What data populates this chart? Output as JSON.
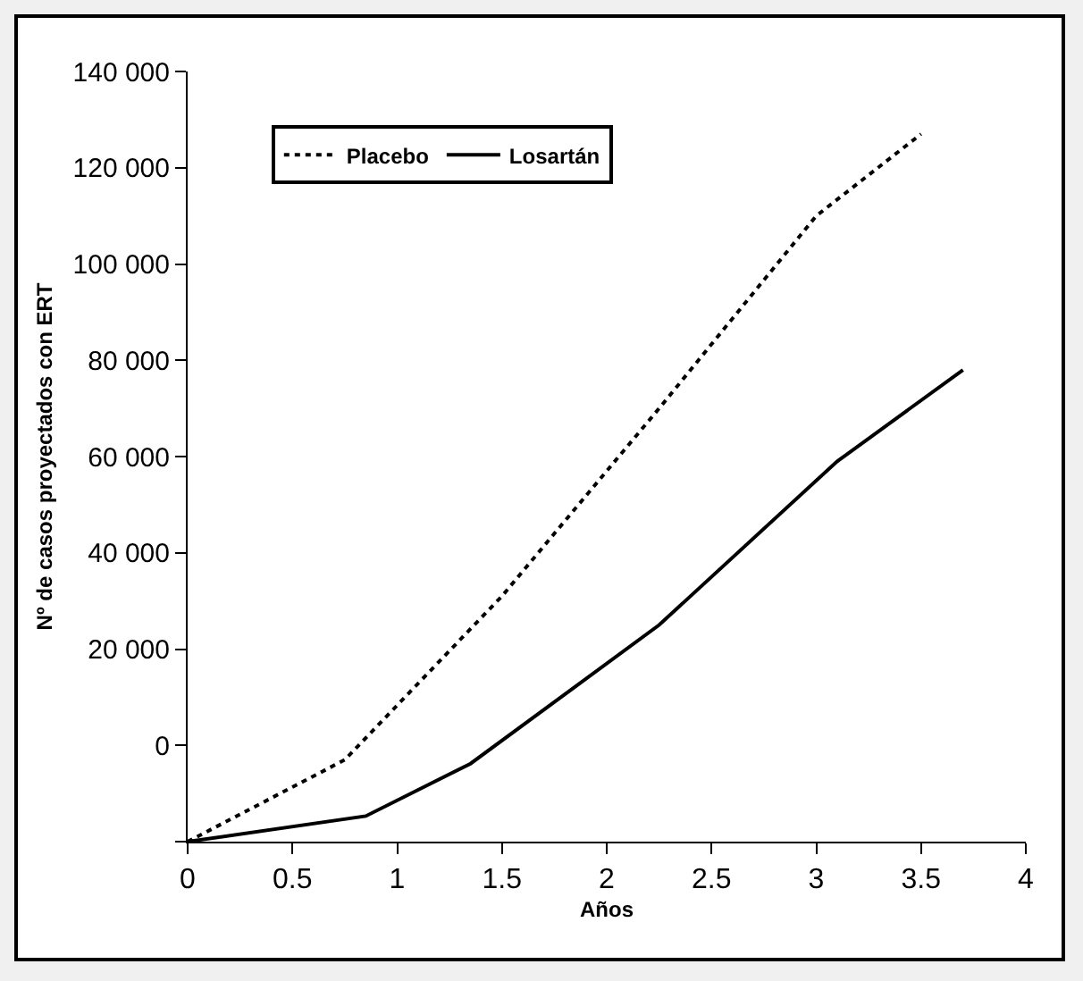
{
  "chart_data": {
    "type": "line",
    "xlabel": "Años",
    "ylabel": "Nº de casos proyectados con ERT",
    "xlim": [
      0,
      4
    ],
    "xticks": [
      0,
      0.5,
      1,
      1.5,
      2,
      2.5,
      3,
      3.5,
      4
    ],
    "ylim": [
      -20000,
      140000
    ],
    "yticks": [
      {
        "value": -20000,
        "label": null
      },
      {
        "value": 0,
        "label": "0"
      },
      {
        "value": 20000,
        "label": "20 000"
      },
      {
        "value": 40000,
        "label": "40 000"
      },
      {
        "value": 60000,
        "label": "60 000"
      },
      {
        "value": 80000,
        "label": "80 000"
      },
      {
        "value": 100000,
        "label": "100 000"
      },
      {
        "value": 120000,
        "label": "120 000"
      },
      {
        "value": 140000,
        "label": "140 000"
      }
    ],
    "series": [
      {
        "name": "Placebo",
        "color": "#000000",
        "line_style": "dotted",
        "x": [
          0,
          0.75,
          1.5,
          2.25,
          3,
          3.5
        ],
        "values": [
          -20000,
          -3000,
          31000,
          70000,
          110000,
          127000
        ]
      },
      {
        "name": "Losartán",
        "color": "#000000",
        "line_style": "solid",
        "x": [
          0,
          0.85,
          1.35,
          2.25,
          3.1,
          3.7
        ],
        "values": [
          -20000,
          -14700,
          -3800,
          25000,
          59000,
          78000
        ]
      }
    ],
    "grid": false,
    "legend": "top",
    "marker": "none"
  }
}
